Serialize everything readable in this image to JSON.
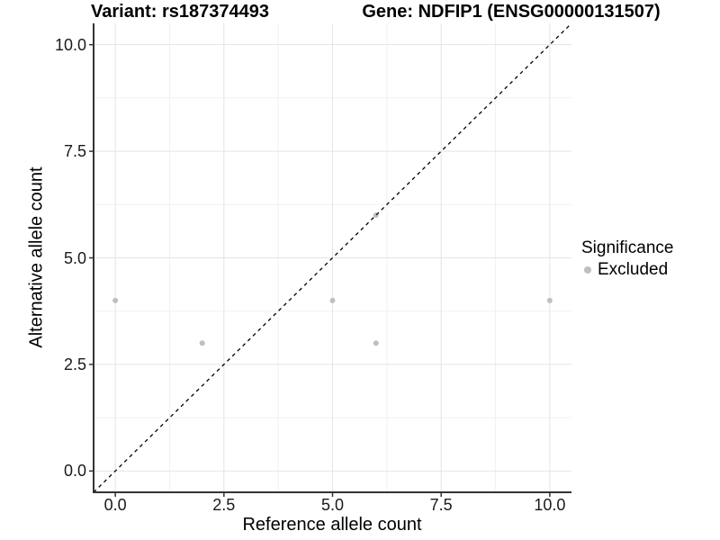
{
  "chart_data": {
    "type": "scatter",
    "title_left": "Variant: rs187374493",
    "title_right": "Gene: NDFIP1 (ENSG00000131507)",
    "xlabel": "Reference allele count",
    "ylabel": "Alternative allele count",
    "axes": {
      "xlim": [
        -0.5,
        10.5
      ],
      "ylim": [
        -0.5,
        10.5
      ],
      "x_ticks": [
        0,
        2.5,
        5,
        7.5,
        10
      ],
      "y_ticks": [
        0,
        2.5,
        5,
        7.5,
        10
      ],
      "x_tick_labels": [
        "0.0",
        "2.5",
        "5.0",
        "7.5",
        "10.0"
      ],
      "y_tick_labels": [
        "0.0",
        "2.5",
        "5.0",
        "7.5",
        "10.0"
      ],
      "minor_ticks": [
        1.25,
        3.75,
        6.25,
        8.75
      ],
      "grid": true
    },
    "series": [
      {
        "name": "Excluded",
        "color": "#bfbfbf",
        "points": [
          [
            0,
            4
          ],
          [
            2,
            3
          ],
          [
            5,
            4
          ],
          [
            6,
            3
          ],
          [
            6,
            6
          ],
          [
            10,
            4
          ]
        ]
      }
    ],
    "reference_line": {
      "type": "identity",
      "equation": "y = x",
      "style": "dashed",
      "color": "#000000"
    },
    "legend": {
      "title": "Significance",
      "position": "right",
      "items": [
        {
          "label": "Excluded",
          "color": "#bfbfbf"
        }
      ]
    },
    "style": {
      "background": "#ffffff",
      "grid_major_color": "#e4e4e4",
      "grid_minor_color": "#f1f1f1",
      "axis_line_color": "#333333",
      "point_color": "#bfbfbf"
    }
  }
}
